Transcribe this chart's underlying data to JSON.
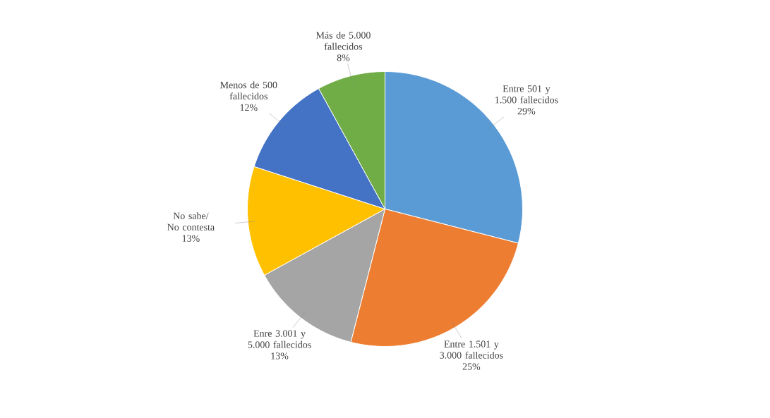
{
  "chart_data": {
    "type": "pie",
    "categories": [
      "Entre 501 y 1.500 fallecidos",
      "Entre 1.501 y 3.000 fallecidos",
      "Enre 3.001 y 5.000 fallecidos",
      "No sabe/ No contesta",
      "Menos de 500 fallecidos",
      "Más de 5.000 fallecidos"
    ],
    "values": [
      29,
      25,
      13,
      13,
      12,
      8
    ],
    "value_labels": [
      "29%",
      "25%",
      "13%",
      "13%",
      "12%",
      "8%"
    ],
    "colors": [
      "#5b9bd5",
      "#ed7d31",
      "#a5a5a5",
      "#ffc000",
      "#4472c4",
      "#70ad47"
    ]
  }
}
